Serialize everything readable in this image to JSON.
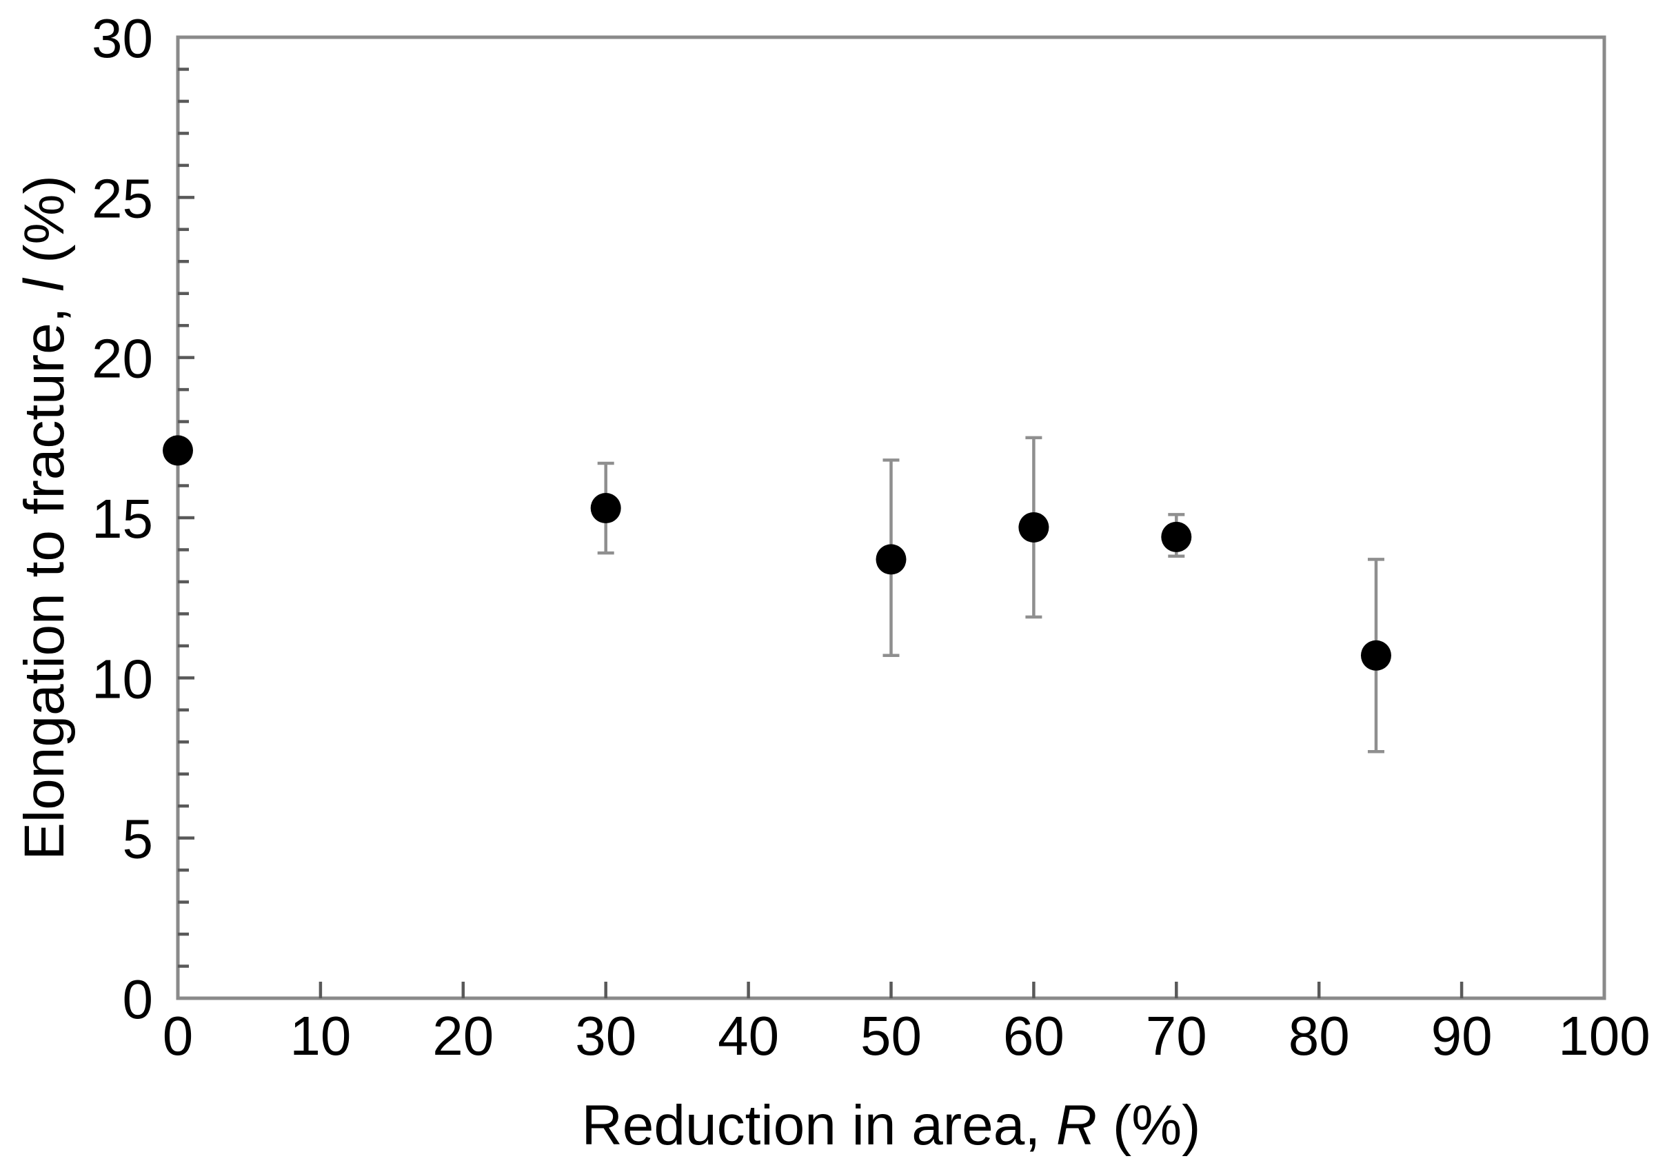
{
  "figure": {
    "background_color": "#ffffff",
    "frame_color": "#8a8a8a",
    "tick_color": "#595959",
    "text_color": "#000000"
  },
  "chart_data": {
    "type": "scatter",
    "title": "",
    "xlabel": {
      "prefix": "Reduction in area, ",
      "symbol": "R",
      "suffix": " (%)"
    },
    "ylabel": {
      "prefix": "Elongation to fracture, ",
      "symbol": "l",
      "suffix": " (%)"
    },
    "x_axis": {
      "min": 0,
      "max": 100,
      "major_tick_step": 10,
      "tick_labels": [
        "0",
        "10",
        "20",
        "30",
        "40",
        "50",
        "60",
        "70",
        "80",
        "90",
        "100"
      ]
    },
    "y_axis": {
      "min": 0,
      "max": 30,
      "major_tick_step": 5,
      "minor_tick_step": 1,
      "tick_labels": [
        "0",
        "5",
        "10",
        "15",
        "20",
        "25",
        "30"
      ]
    },
    "grid": false,
    "legend": false,
    "frame": "full-box",
    "series": [
      {
        "name": "elongation-to-fracture",
        "marker": "filled-circle",
        "marker_color": "#000000",
        "error_bar_color": "#8f8f8f",
        "points": [
          {
            "x": 0,
            "y": 17.1,
            "err_plus": 0,
            "err_minus": 0
          },
          {
            "x": 30,
            "y": 15.3,
            "err_plus": 1.4,
            "err_minus": 1.4
          },
          {
            "x": 50,
            "y": 13.7,
            "err_plus": 3.1,
            "err_minus": 3.0
          },
          {
            "x": 60,
            "y": 14.7,
            "err_plus": 2.8,
            "err_minus": 2.8
          },
          {
            "x": 70,
            "y": 14.4,
            "err_plus": 0.7,
            "err_minus": 0.6
          },
          {
            "x": 84,
            "y": 10.7,
            "err_plus": 3.0,
            "err_minus": 3.0
          }
        ]
      }
    ]
  }
}
